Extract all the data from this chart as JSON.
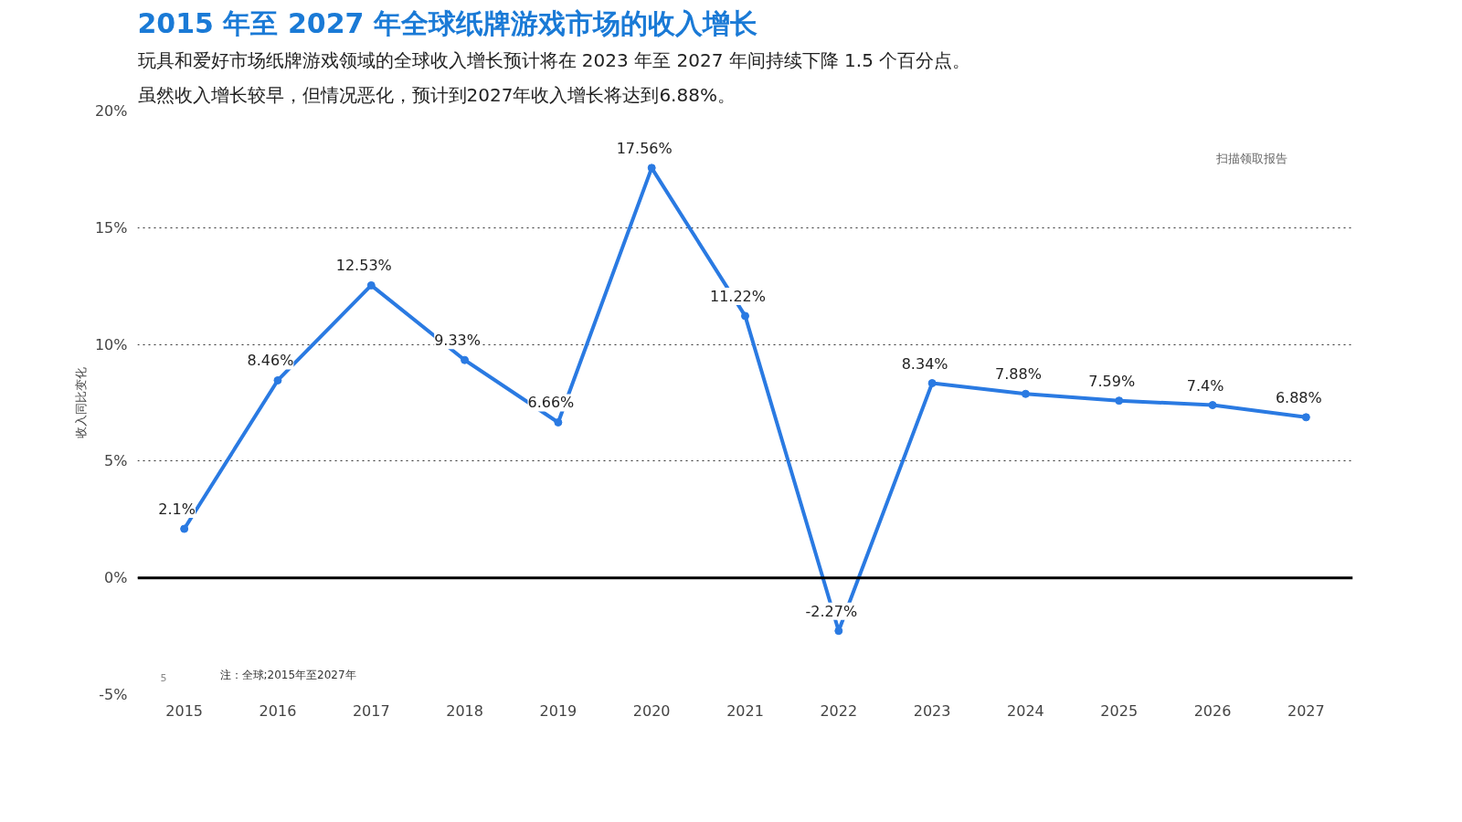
{
  "chart_data": {
    "type": "line",
    "title": "2015 年至 2027 年全球纸牌游戏市场的收入增长",
    "subtitle": "玩具和爱好市场纸牌游戏领域的全球收入增长预计将在 2023 年至 2027 年间持续下降 1.5 个百分点。虽然收入增长较早，但情况恶化，预计到2027年收入增长将达到6.88%。",
    "ylabel": "收入同比变化",
    "categories": [
      "2015",
      "2016",
      "2017",
      "2018",
      "2019",
      "2020",
      "2021",
      "2022",
      "2023",
      "2024",
      "2025",
      "2026",
      "2027"
    ],
    "series": [
      {
        "color": "#2a7ae2",
        "values": [
          2.1,
          8.46,
          12.53,
          9.33,
          6.66,
          17.56,
          11.22,
          -2.27,
          8.34,
          7.88,
          7.59,
          7.4,
          6.88
        ],
        "value_labels": [
          "2.1%",
          "8.46%",
          "12.53%",
          "9.33%",
          "6.66%",
          "17.56%",
          "11.22%",
          "-2.27%",
          "8.34%",
          "7.88%",
          "7.59%",
          "7.4%",
          "6.88%"
        ]
      }
    ],
    "ylim": [
      -5,
      20
    ],
    "yticks": [
      {
        "value": -5,
        "label": "-5%"
      },
      {
        "value": 0,
        "label": "0%"
      },
      {
        "value": 5,
        "label": "5%"
      },
      {
        "value": 10,
        "label": "10%"
      },
      {
        "value": 15,
        "label": "15%"
      },
      {
        "value": 20,
        "label": "20%"
      }
    ],
    "grid": "y",
    "marker": "circle",
    "line_style": "solid",
    "ref_lines": [
      {
        "axis": "y",
        "value": 0,
        "color": "#000000",
        "line_style": "solid"
      }
    ],
    "annotations": [
      "扫描领取报告",
      "注：全球;2015年至2027年",
      "5"
    ]
  }
}
